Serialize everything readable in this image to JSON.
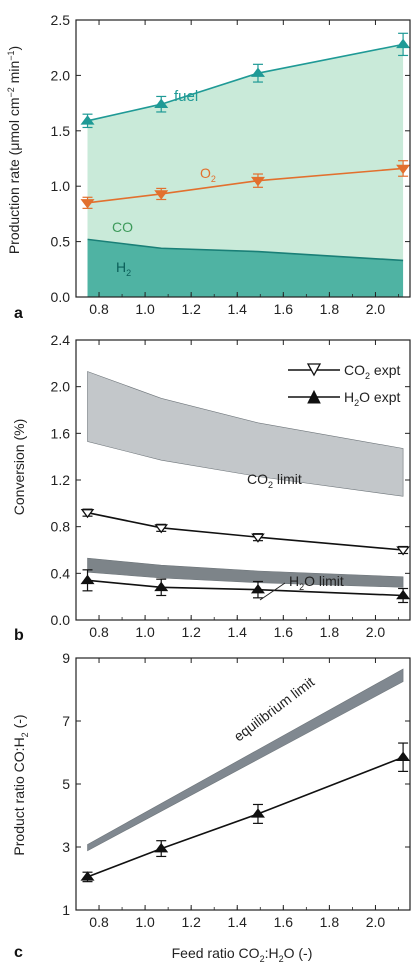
{
  "chart_data": [
    {
      "panel": "a",
      "type": "line",
      "ylabel": "Production rate (μmol cm⁻² min⁻¹)",
      "ylabel_main": "Production rate (μmol cm",
      "ylabel_sup": "−2",
      "ylabel_mid": " min",
      "ylabel_sup2": "−1",
      "ylabel_end": ")",
      "xlim": [
        0.7,
        2.15
      ],
      "ylim": [
        0,
        2.5
      ],
      "xticks": [
        "0.8",
        "1.0",
        "1.2",
        "1.4",
        "1.6",
        "1.8",
        "2.0"
      ],
      "yticks": [
        "0.0",
        "0.5",
        "1.0",
        "1.5",
        "2.0",
        "2.5"
      ],
      "x": [
        0.75,
        1.07,
        1.49,
        2.12
      ],
      "series": [
        {
          "name": "fuel",
          "values": [
            1.59,
            1.74,
            2.02,
            2.28
          ],
          "errors": [
            0.06,
            0.07,
            0.08,
            0.1
          ],
          "color": "#1f9a96",
          "marker": "triangle-up"
        },
        {
          "name": "O2",
          "values": [
            0.85,
            0.93,
            1.05,
            1.16
          ],
          "errors": [
            0.05,
            0.05,
            0.06,
            0.07
          ],
          "color": "#e2702e",
          "marker": "triangle-down"
        }
      ],
      "areas": [
        {
          "name": "CO",
          "upper": [
            1.59,
            1.74,
            2.02,
            2.28
          ],
          "lower": [
            0.52,
            0.44,
            0.41,
            0.33
          ],
          "color": "#c9ead9"
        },
        {
          "name": "H2",
          "upper": [
            0.52,
            0.44,
            0.41,
            0.33
          ],
          "lower": [
            0,
            0,
            0,
            0
          ],
          "color": "#4fb3a3"
        }
      ],
      "labels": {
        "fuel": "fuel",
        "o2_main": "O",
        "o2_sub": "2",
        "co": "CO",
        "h2_main": "H",
        "h2_sub": "2"
      }
    },
    {
      "panel": "b",
      "type": "line",
      "ylabel": "Conversion (%)",
      "xlim": [
        0.7,
        2.15
      ],
      "ylim": [
        0,
        2.4
      ],
      "xticks": [
        "0.8",
        "1.0",
        "1.2",
        "1.4",
        "1.6",
        "1.8",
        "2.0"
      ],
      "yticks": [
        "0.0",
        "0.4",
        "0.8",
        "1.2",
        "1.6",
        "2.0",
        "2.4"
      ],
      "x": [
        0.75,
        1.07,
        1.49,
        2.12
      ],
      "series": [
        {
          "name": "CO2 expt",
          "values": [
            0.92,
            0.79,
            0.71,
            0.6
          ],
          "errors": [
            0.03,
            0.03,
            0.03,
            0.03
          ],
          "marker": "triangle-down-open"
        },
        {
          "name": "H2O expt",
          "values": [
            0.34,
            0.28,
            0.26,
            0.21
          ],
          "errors": [
            0.09,
            0.07,
            0.07,
            0.06
          ],
          "marker": "triangle-up-filled"
        }
      ],
      "bands": [
        {
          "name": "CO2 limit",
          "x": [
            0.75,
            1.07,
            1.49,
            2.12
          ],
          "upper": [
            2.13,
            1.9,
            1.69,
            1.47
          ],
          "lower": [
            1.53,
            1.37,
            1.23,
            1.06
          ],
          "color": "#c3c7ca"
        },
        {
          "name": "H2O limit",
          "x": [
            0.75,
            1.07,
            1.49,
            2.12
          ],
          "upper": [
            0.53,
            0.47,
            0.42,
            0.37
          ],
          "lower": [
            0.41,
            0.36,
            0.32,
            0.28
          ],
          "color": "#7d8489"
        }
      ],
      "legend": [
        {
          "main": "CO",
          "sub": "2",
          "rest": " expt"
        },
        {
          "main": "H",
          "sub": "2",
          "rest": "O expt"
        }
      ],
      "labels": {
        "co2_limit_main": "CO",
        "co2_limit_sub": "2",
        "co2_limit_rest": " limit",
        "h2o_limit_main": "H",
        "h2o_limit_sub": "2",
        "h2o_limit_rest": "O limit"
      }
    },
    {
      "panel": "c",
      "type": "line",
      "ylabel": "Product ratio CO:H₂ (-)",
      "ylabel_main": "Product ratio CO:H",
      "ylabel_sub": "2",
      "ylabel_end": " (-)",
      "xlabel": "Feed ratio CO₂:H₂O (-)",
      "xlabel_a": "Feed ratio CO",
      "xlabel_sub1": "2",
      "xlabel_b": ":H",
      "xlabel_sub2": "2",
      "xlabel_c": "O (-)",
      "xlim": [
        0.7,
        2.15
      ],
      "ylim": [
        1,
        9
      ],
      "xticks": [
        "0.8",
        "1.0",
        "1.2",
        "1.4",
        "1.6",
        "1.8",
        "2.0"
      ],
      "yticks": [
        "1",
        "3",
        "5",
        "7",
        "9"
      ],
      "x": [
        0.75,
        1.07,
        1.49,
        2.12
      ],
      "series": [
        {
          "name": "product ratio",
          "values": [
            2.05,
            2.95,
            4.05,
            5.85
          ],
          "errors": [
            0.15,
            0.25,
            0.3,
            0.45
          ],
          "marker": "triangle-up-filled"
        }
      ],
      "bands": [
        {
          "name": "equilibrium limit",
          "x": [
            0.75,
            2.12
          ],
          "upper": [
            3.08,
            8.65
          ],
          "lower": [
            2.88,
            8.25
          ],
          "color": "#808890"
        }
      ],
      "labels": {
        "equilibrium": "equilibrium limit"
      }
    }
  ],
  "panel_letters": {
    "a": "a",
    "b": "b",
    "c": "c"
  }
}
